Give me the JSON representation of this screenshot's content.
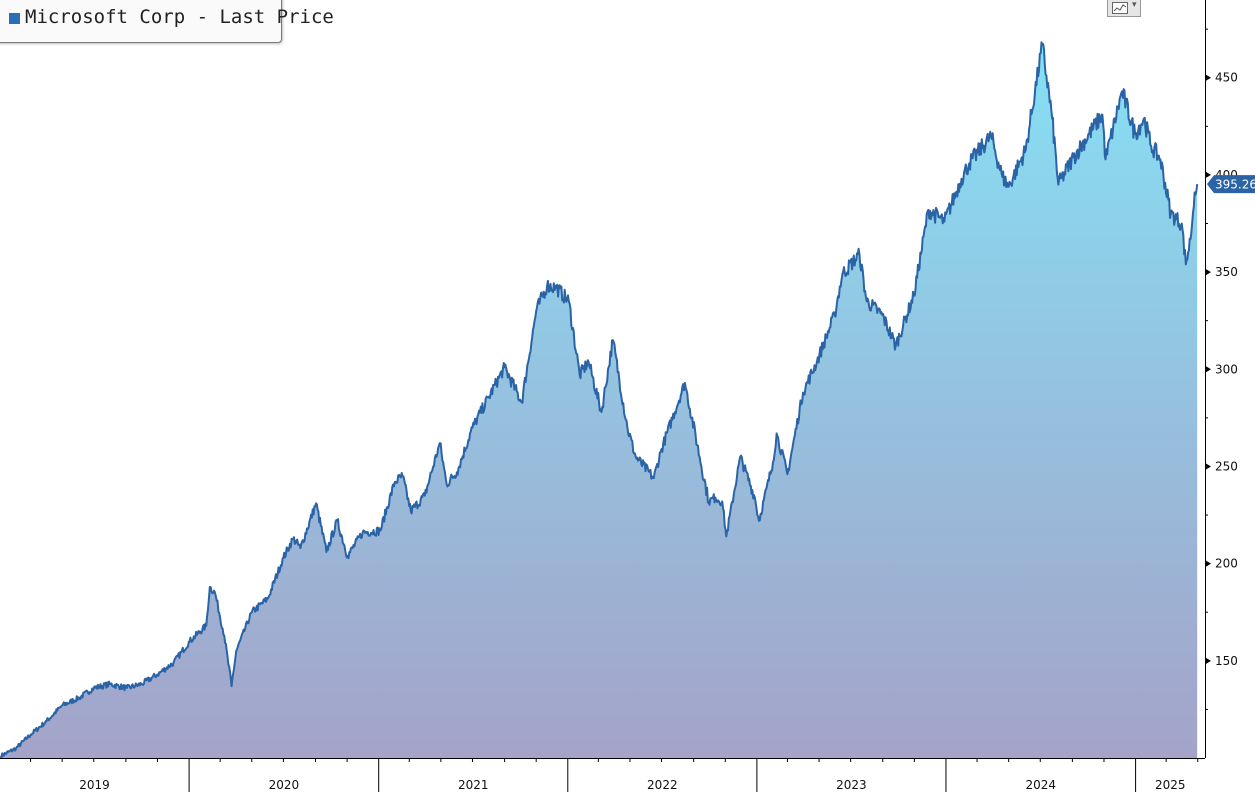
{
  "legend": {
    "label": "Microsoft Corp - Last Price",
    "color": "#2c6fb8"
  },
  "last_price_label": "395.26",
  "chart_type_button": {
    "icon": "line-chart-icon"
  },
  "colors": {
    "line": "#2a63a6",
    "fill_top": "#86e0f4",
    "fill_bottom": "#a4a3c9",
    "tag": "#2a63a6"
  },
  "chart_data": {
    "type": "area",
    "title": "",
    "series": [
      {
        "name": "Microsoft Corp - Last Price",
        "points": [
          [
            "2019-01-02",
            101
          ],
          [
            "2019-02-01",
            105
          ],
          [
            "2019-03-01",
            112
          ],
          [
            "2019-04-01",
            119
          ],
          [
            "2019-05-01",
            127
          ],
          [
            "2019-06-03",
            131
          ],
          [
            "2019-07-01",
            136
          ],
          [
            "2019-08-01",
            138
          ],
          [
            "2019-09-03",
            136
          ],
          [
            "2019-10-01",
            138
          ],
          [
            "2019-11-01",
            143
          ],
          [
            "2019-12-02",
            149
          ],
          [
            "2020-01-02",
            160
          ],
          [
            "2020-02-03",
            168
          ],
          [
            "2020-02-10",
            188
          ],
          [
            "2020-02-20",
            185
          ],
          [
            "2020-03-09",
            163
          ],
          [
            "2020-03-23",
            137
          ],
          [
            "2020-04-01",
            155
          ],
          [
            "2020-05-01",
            175
          ],
          [
            "2020-06-01",
            182
          ],
          [
            "2020-07-01",
            203
          ],
          [
            "2020-07-20",
            213
          ],
          [
            "2020-08-03",
            208
          ],
          [
            "2020-09-02",
            231
          ],
          [
            "2020-09-22",
            206
          ],
          [
            "2020-10-13",
            222
          ],
          [
            "2020-11-02",
            204
          ],
          [
            "2020-12-01",
            216
          ],
          [
            "2021-01-04",
            217
          ],
          [
            "2021-02-01",
            242
          ],
          [
            "2021-02-16",
            245
          ],
          [
            "2021-03-04",
            227
          ],
          [
            "2021-03-31",
            235
          ],
          [
            "2021-04-29",
            262
          ],
          [
            "2021-05-12",
            241
          ],
          [
            "2021-06-01",
            247
          ],
          [
            "2021-07-01",
            270
          ],
          [
            "2021-08-02",
            286
          ],
          [
            "2021-09-01",
            301
          ],
          [
            "2021-10-04",
            283
          ],
          [
            "2021-11-01",
            330
          ],
          [
            "2021-11-22",
            343
          ],
          [
            "2021-12-10",
            342
          ],
          [
            "2022-01-03",
            335
          ],
          [
            "2022-01-24",
            297
          ],
          [
            "2022-02-10",
            304
          ],
          [
            "2022-03-07",
            278
          ],
          [
            "2022-03-29",
            315
          ],
          [
            "2022-04-26",
            270
          ],
          [
            "2022-05-12",
            255
          ],
          [
            "2022-06-16",
            244
          ],
          [
            "2022-07-01",
            259
          ],
          [
            "2022-08-15",
            293
          ],
          [
            "2022-09-30",
            232
          ],
          [
            "2022-10-13",
            234
          ],
          [
            "2022-10-26",
            232
          ],
          [
            "2022-11-03",
            214
          ],
          [
            "2022-11-30",
            255
          ],
          [
            "2022-12-28",
            234
          ],
          [
            "2023-01-05",
            222
          ],
          [
            "2023-02-01",
            252
          ],
          [
            "2023-02-08",
            267
          ],
          [
            "2023-03-01",
            246
          ],
          [
            "2023-03-31",
            288
          ],
          [
            "2023-04-27",
            304
          ],
          [
            "2023-05-31",
            328
          ],
          [
            "2023-06-15",
            349
          ],
          [
            "2023-07-18",
            359
          ],
          [
            "2023-08-01",
            335
          ],
          [
            "2023-08-31",
            328
          ],
          [
            "2023-09-26",
            312
          ],
          [
            "2023-10-31",
            338
          ],
          [
            "2023-11-28",
            382
          ],
          [
            "2023-12-29",
            376
          ],
          [
            "2024-01-31",
            398
          ],
          [
            "2024-02-15",
            406
          ],
          [
            "2024-03-28",
            420
          ],
          [
            "2024-04-19",
            399
          ],
          [
            "2024-05-01",
            394
          ],
          [
            "2024-06-03",
            413
          ],
          [
            "2024-07-05",
            467
          ],
          [
            "2024-07-24",
            429
          ],
          [
            "2024-08-05",
            395
          ],
          [
            "2024-09-03",
            409
          ],
          [
            "2024-10-29",
            431
          ],
          [
            "2024-11-04",
            408
          ],
          [
            "2024-12-06",
            443
          ],
          [
            "2024-12-31",
            421
          ],
          [
            "2025-01-17",
            429
          ],
          [
            "2025-01-31",
            415
          ],
          [
            "2025-02-18",
            408
          ],
          [
            "2025-03-10",
            380
          ],
          [
            "2025-03-31",
            375
          ],
          [
            "2025-04-08",
            354
          ],
          [
            "2025-04-17",
            367
          ],
          [
            "2025-04-25",
            391
          ],
          [
            "2025-04-30",
            395.26
          ]
        ]
      }
    ],
    "x_tick_labels": [
      "2019",
      "2020",
      "2021",
      "2022",
      "2023",
      "2024",
      "2025"
    ],
    "y_ticks": [
      150,
      200,
      250,
      300,
      350,
      400,
      450
    ],
    "ylim": [
      100,
      490
    ],
    "xlim": [
      "2019-01-01",
      "2025-05-15"
    ],
    "last_value": 395.26,
    "grid": false,
    "legend_position": "top-left",
    "y_axis_position": "right"
  }
}
